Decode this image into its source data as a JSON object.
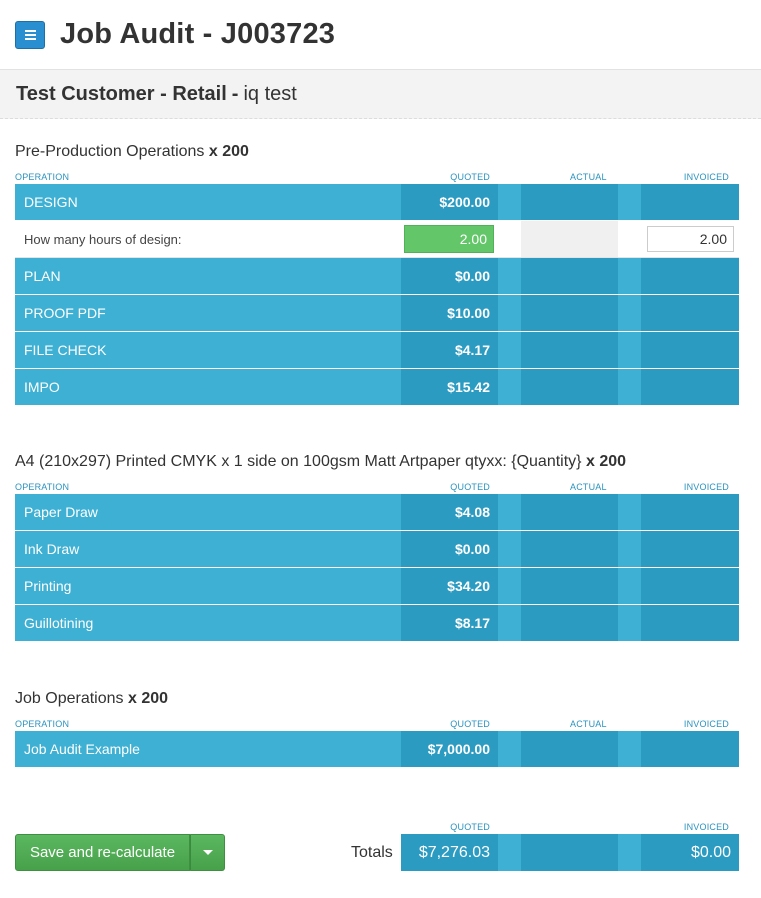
{
  "header": {
    "title": "Job Audit - J003723",
    "menu_icon": "hamburger-menu-icon"
  },
  "customer": {
    "name": "Test Customer - Retail",
    "separator": "-",
    "job_name": "iq test"
  },
  "columns": {
    "operation": "OPERATION",
    "quoted": "QUOTED",
    "actual": "ACTUAL",
    "invoiced": "INVOICED"
  },
  "sections": [
    {
      "title": "Pre-Production Operations",
      "qty": "x 200",
      "rows": [
        {
          "name": "DESIGN",
          "quoted": "$200.00"
        },
        {
          "question": "How many hours of design:",
          "quoted": "2.00",
          "invoiced": "2.00"
        },
        {
          "name": "PLAN",
          "quoted": "$0.00"
        },
        {
          "name": "PROOF PDF",
          "quoted": "$10.00"
        },
        {
          "name": "FILE CHECK",
          "quoted": "$4.17"
        },
        {
          "name": "IMPO",
          "quoted": "$15.42"
        }
      ]
    },
    {
      "title": "A4 (210x297) Printed CMYK x 1 side on 100gsm Matt Artpaper qtyxx: {Quantity}",
      "qty": "x 200",
      "rows": [
        {
          "name": "Paper Draw",
          "quoted": "$4.08"
        },
        {
          "name": "Ink Draw",
          "quoted": "$0.00"
        },
        {
          "name": "Printing",
          "quoted": "$34.20"
        },
        {
          "name": "Guillotining",
          "quoted": "$8.17"
        }
      ]
    },
    {
      "title": "Job Operations",
      "qty": "x 200",
      "rows": [
        {
          "name": "Job Audit Example",
          "quoted": "$7,000.00"
        }
      ]
    }
  ],
  "footer": {
    "save_label": "Save and re-calculate",
    "totals_label": "Totals",
    "quoted_total": "$7,276.03",
    "invoiced_total": "$0.00"
  },
  "colors": {
    "row_light": "#3eb0d3",
    "row_dark": "#2b9bc2",
    "accent_blue": "#2a8fd0",
    "save_green": "#4cae50",
    "input_green": "#63c76a"
  }
}
